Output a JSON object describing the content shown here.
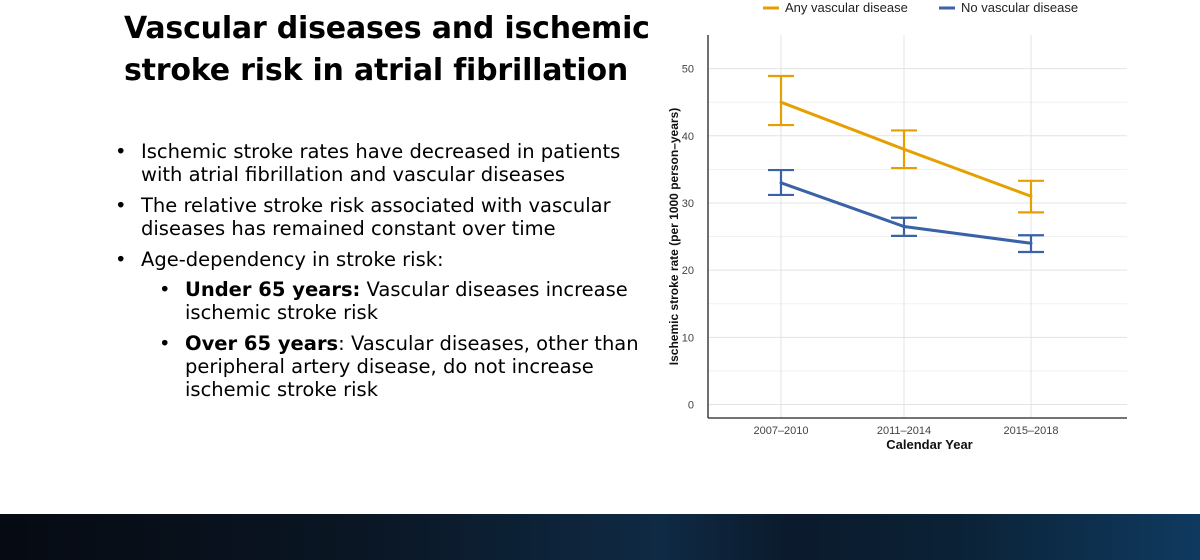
{
  "slide": {
    "title": "Vascular diseases and ischemic stroke risk in atrial fibrillation",
    "bullets": [
      "Ischemic stroke rates have decreased in patients with atrial fibrillation and vascular diseases",
      "The relative stroke risk associated with vascular diseases has remained constant over time",
      "Age-dependency in stroke risk:"
    ],
    "sub_bullets": [
      {
        "bold": "Under 65 years:",
        "text": " Vascular diseases increase ischemic stroke risk"
      },
      {
        "bold": "Over 65 years",
        "text": ": Vascular diseases, other than peripheral artery disease, do not increase ischemic stroke risk"
      }
    ]
  },
  "chart_data": {
    "type": "line",
    "categories": [
      "2007–2010",
      "2011–2014",
      "2015–2018"
    ],
    "series": [
      {
        "name": "Any vascular disease",
        "color": "#E69F00",
        "values": [
          45,
          38,
          31
        ],
        "ci_low": [
          41.6,
          35.2,
          28.6
        ],
        "ci_high": [
          48.9,
          40.8,
          33.3
        ]
      },
      {
        "name": "No vascular disease",
        "color": "#3A62A7",
        "values": [
          33,
          26.5,
          24
        ],
        "ci_low": [
          31.2,
          25.1,
          22.7
        ],
        "ci_high": [
          34.9,
          27.8,
          25.2
        ]
      }
    ],
    "xlabel": "Calendar Year",
    "ylabel": "Ischemic stroke rate (per 1000 person–years)",
    "yticks": [
      0,
      10,
      20,
      30,
      40,
      50
    ],
    "ylim": [
      -2,
      55
    ],
    "grid": true,
    "legend_position": "top"
  }
}
